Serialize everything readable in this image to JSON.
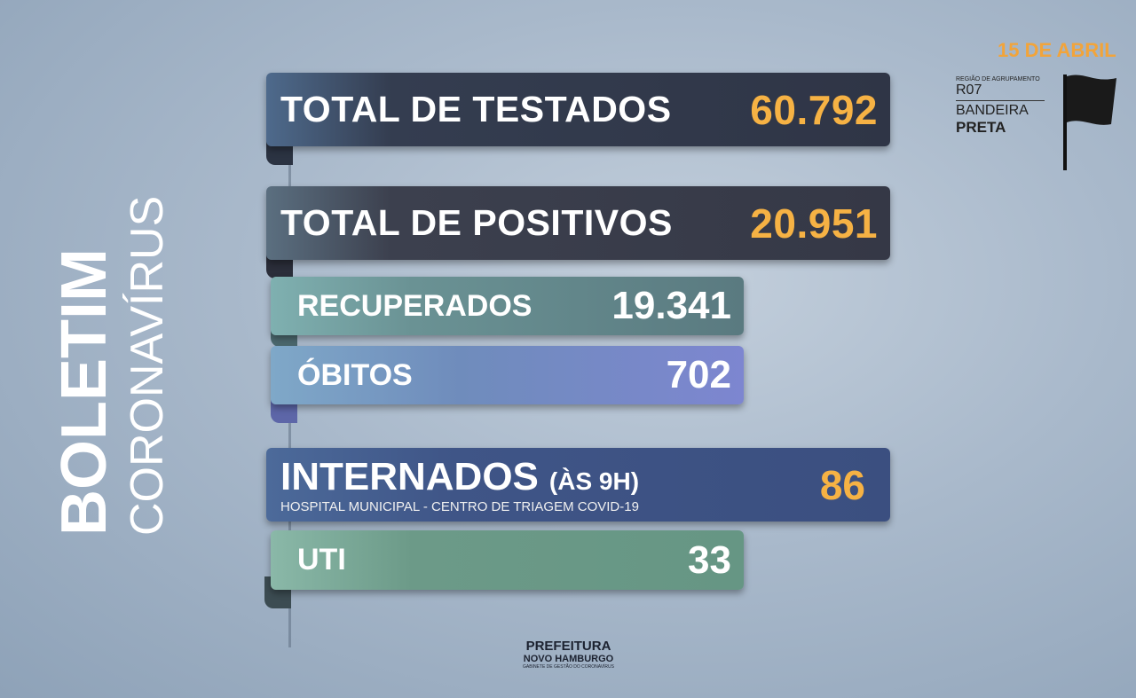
{
  "sidebar": {
    "title": "BOLETIM",
    "subtitle": "CORONAVÍRUS"
  },
  "header": {
    "date": "15 DE ABRIL",
    "region_label": "REGIÃO DE AGRUPAMENTO",
    "region": "R07",
    "flag_label": "BANDEIRA",
    "flag": "PRETA"
  },
  "stats": [
    {
      "label": "TOTAL DE TESTADOS",
      "value": "60.792"
    },
    {
      "label": "TOTAL DE POSITIVOS",
      "value": "20.951"
    },
    {
      "label": "RECUPERADOS",
      "value": "19.341"
    },
    {
      "label": "ÓBITOS",
      "value": "702"
    }
  ],
  "internados": {
    "label": "INTERNADOS",
    "note": "(ÀS 9H)",
    "sublabel": "HOSPITAL MUNICIPAL - CENTRO DE TRIAGEM COVID-19",
    "value": "86"
  },
  "uti": {
    "label": "UTI",
    "value": "33"
  },
  "footer": {
    "brand": "PREFEITURA",
    "city": "NOVO HAMBURGO",
    "dept": "GABINETE DE GESTÃO DO CORONAVÍRUS"
  }
}
